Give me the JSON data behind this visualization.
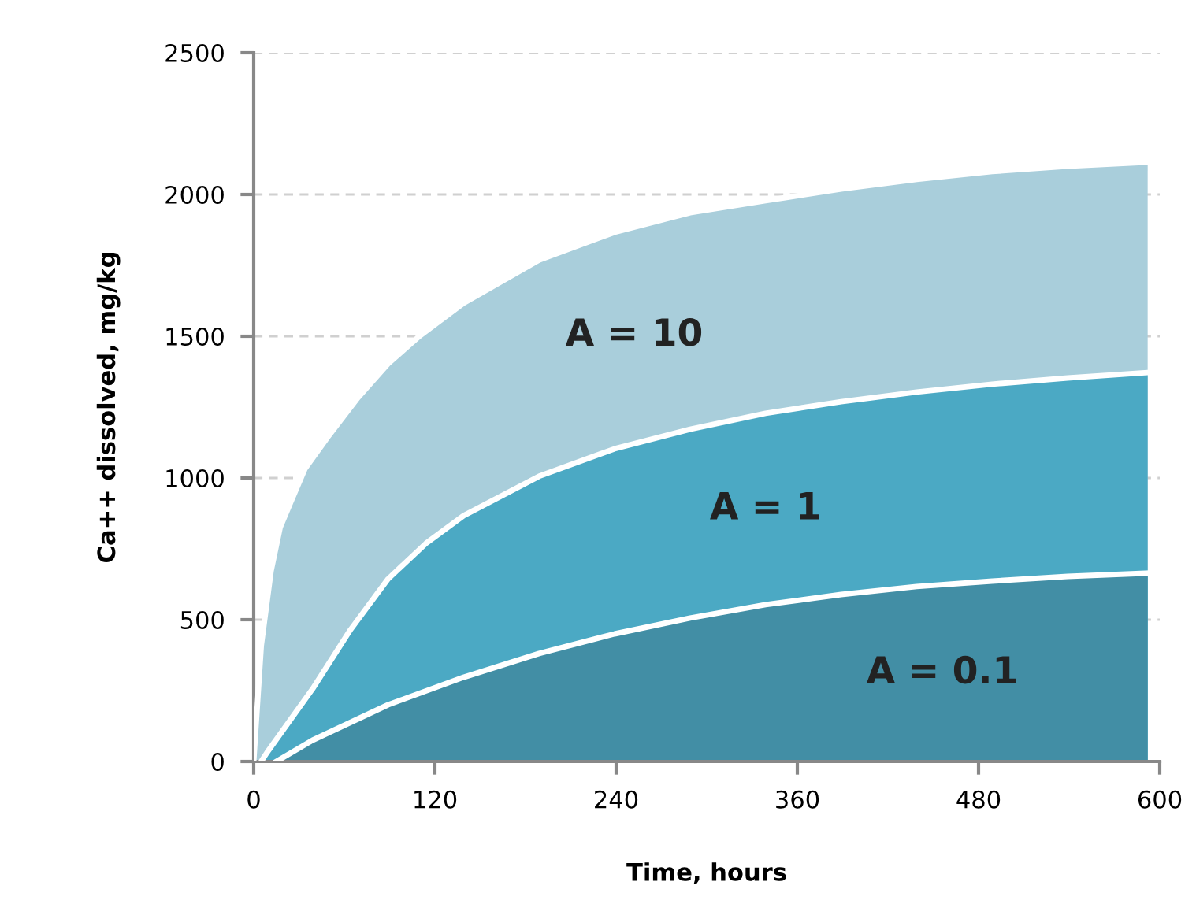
{
  "chart_data": {
    "type": "area",
    "xlabel": "Time, hours",
    "ylabel": "Ca++ dissolved, mg/kg",
    "xlim": [
      0,
      600
    ],
    "ylim": [
      0,
      2500
    ],
    "xticks": [
      0,
      120,
      240,
      360,
      480,
      600
    ],
    "yticks": [
      0,
      500,
      1000,
      1500,
      2000,
      2500
    ],
    "grid": "y",
    "legend": false,
    "series": [
      {
        "name": "A = 10",
        "color": "#a9cedb",
        "x": [
          0,
          5,
          11.5,
          17.5,
          24,
          34,
          49,
          69,
          89,
          109,
          139,
          189,
          239,
          289,
          339,
          389,
          439,
          489,
          539,
          592
        ],
        "values": [
          0,
          408,
          672,
          825,
          908,
          1033,
          1144,
          1283,
          1403,
          1497,
          1617,
          1769,
          1867,
          1936,
          1978,
          2019,
          2053,
          2081,
          2100,
          2114
        ]
      },
      {
        "name": "A = 1",
        "color": "#4ba9c4",
        "x": [
          5,
          9,
          39,
          64,
          89,
          114,
          139,
          189,
          239,
          289,
          339,
          389,
          439,
          489,
          539,
          592
        ],
        "values": [
          0,
          33,
          256,
          464,
          644,
          769,
          867,
          1006,
          1103,
          1172,
          1228,
          1269,
          1303,
          1331,
          1353,
          1372
        ]
      },
      {
        "name": "A = 0.1",
        "color": "#428ea5",
        "x": [
          15,
          39,
          89,
          139,
          189,
          239,
          289,
          339,
          389,
          439,
          489,
          539,
          592
        ],
        "values": [
          0,
          75,
          200,
          297,
          381,
          450,
          506,
          553,
          589,
          617,
          636,
          653,
          664
        ]
      }
    ]
  }
}
